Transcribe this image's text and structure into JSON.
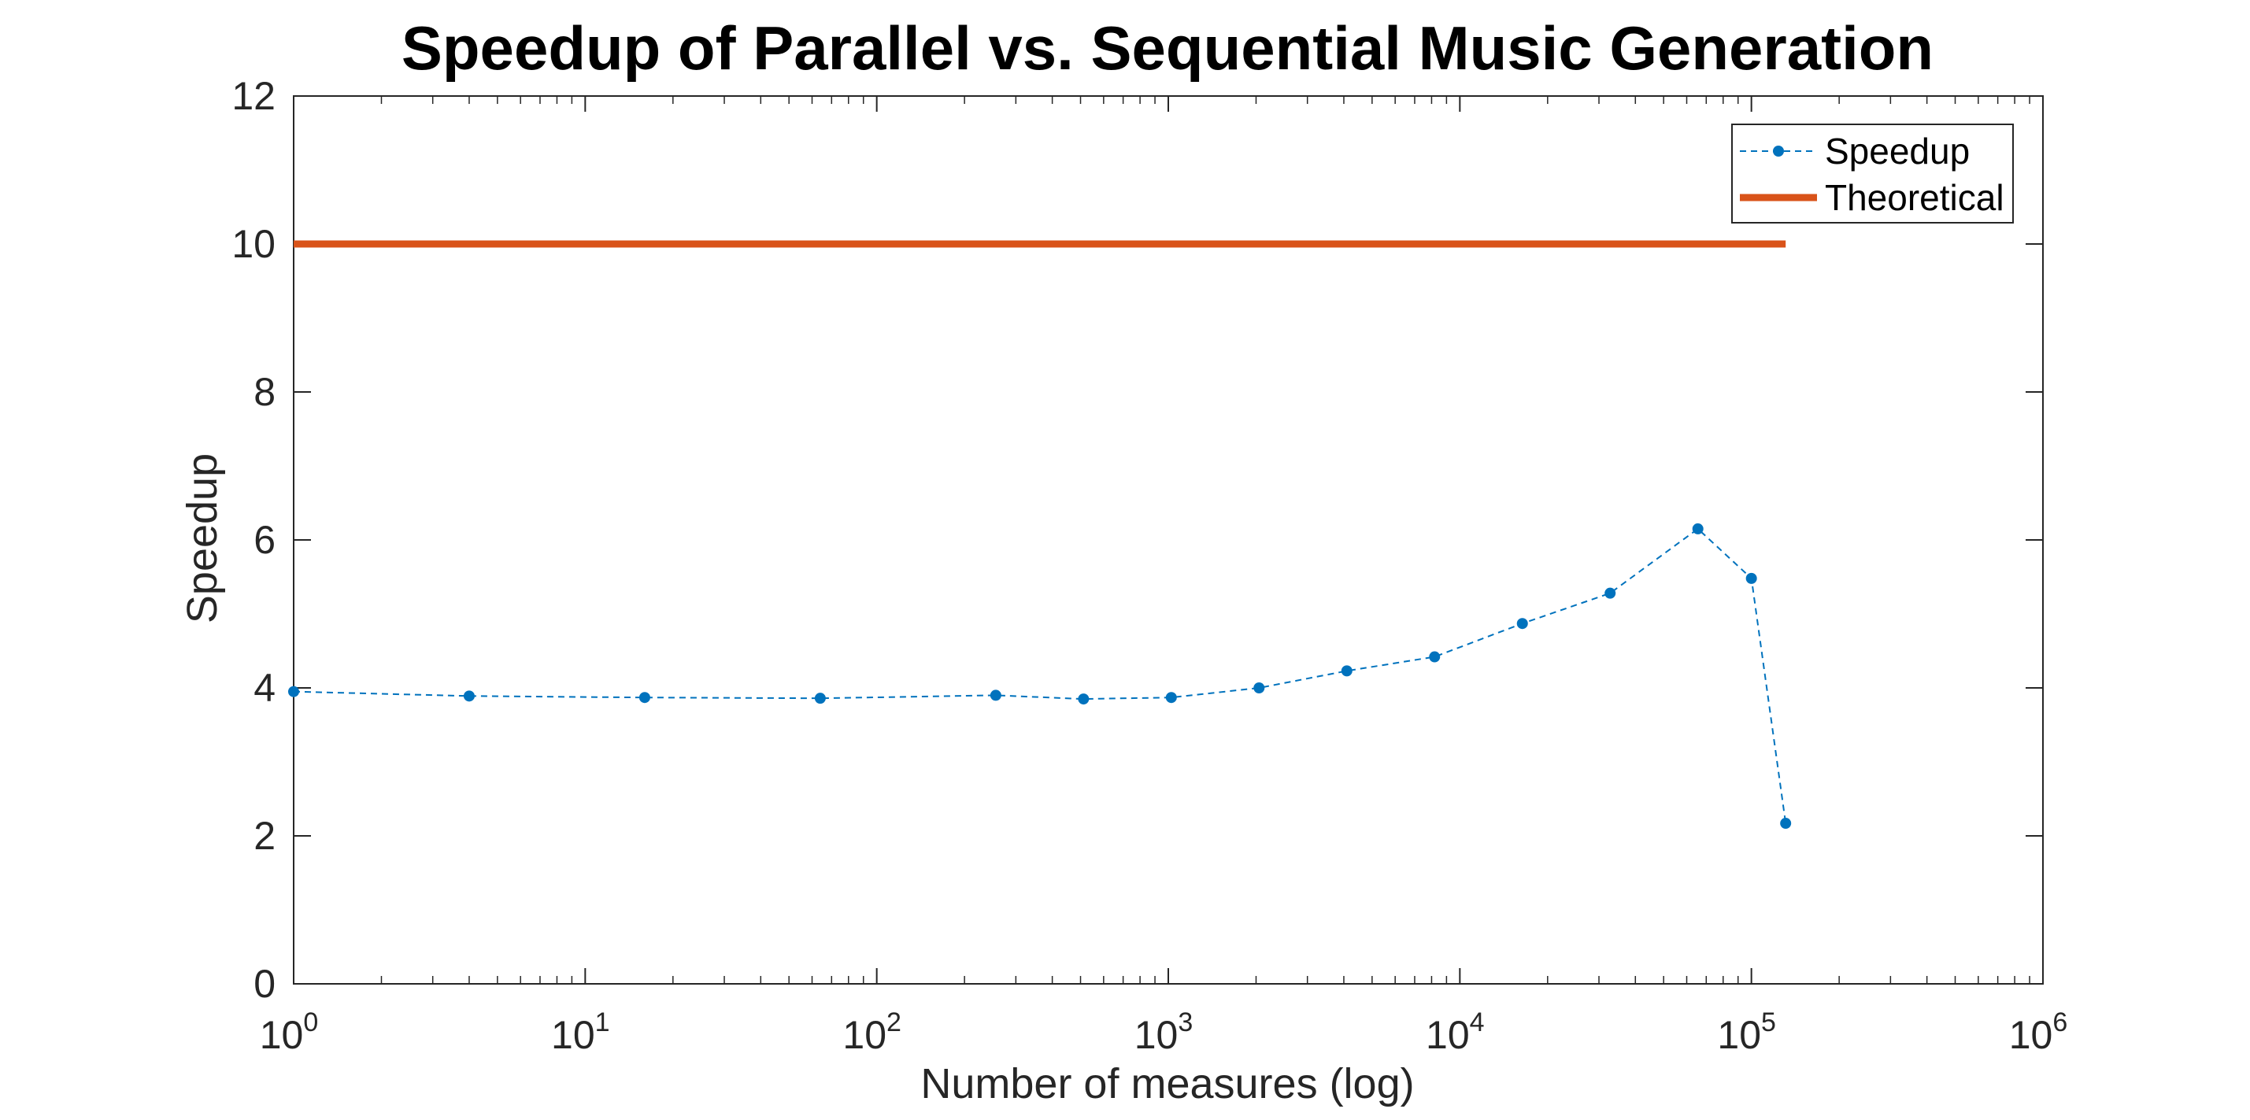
{
  "chart_data": {
    "type": "line",
    "title": "Speedup of Parallel vs. Sequential Music Generation",
    "xlabel": "Number of measures (log)",
    "ylabel": "Speedup",
    "xscale": "log",
    "xlim": [
      1,
      1000000
    ],
    "ylim": [
      0,
      12
    ],
    "x_ticks": [
      {
        "value": 1,
        "base": "10",
        "exp": "0"
      },
      {
        "value": 10,
        "base": "10",
        "exp": "1"
      },
      {
        "value": 100,
        "base": "10",
        "exp": "2"
      },
      {
        "value": 1000,
        "base": "10",
        "exp": "3"
      },
      {
        "value": 10000,
        "base": "10",
        "exp": "4"
      },
      {
        "value": 100000,
        "base": "10",
        "exp": "5"
      },
      {
        "value": 1000000,
        "base": "10",
        "exp": "6"
      }
    ],
    "y_ticks": [
      0,
      2,
      4,
      6,
      8,
      10,
      12
    ],
    "grid": false,
    "legend_position": "top-right",
    "series": [
      {
        "name": "Speedup",
        "color": "#0072BD",
        "style": "dashed-markers",
        "x": [
          1,
          4,
          16,
          64,
          256,
          512,
          1024,
          2048,
          4096,
          8192,
          16384,
          32768,
          65536,
          100000,
          131072
        ],
        "y": [
          3.95,
          3.89,
          3.87,
          3.86,
          3.9,
          3.85,
          3.87,
          4.0,
          4.23,
          4.42,
          4.87,
          5.28,
          6.15,
          5.48,
          2.17
        ]
      },
      {
        "name": "Theoretical",
        "color": "#D95319",
        "style": "solid-thick",
        "x": [
          1,
          131072
        ],
        "y": [
          10,
          10
        ]
      }
    ]
  }
}
